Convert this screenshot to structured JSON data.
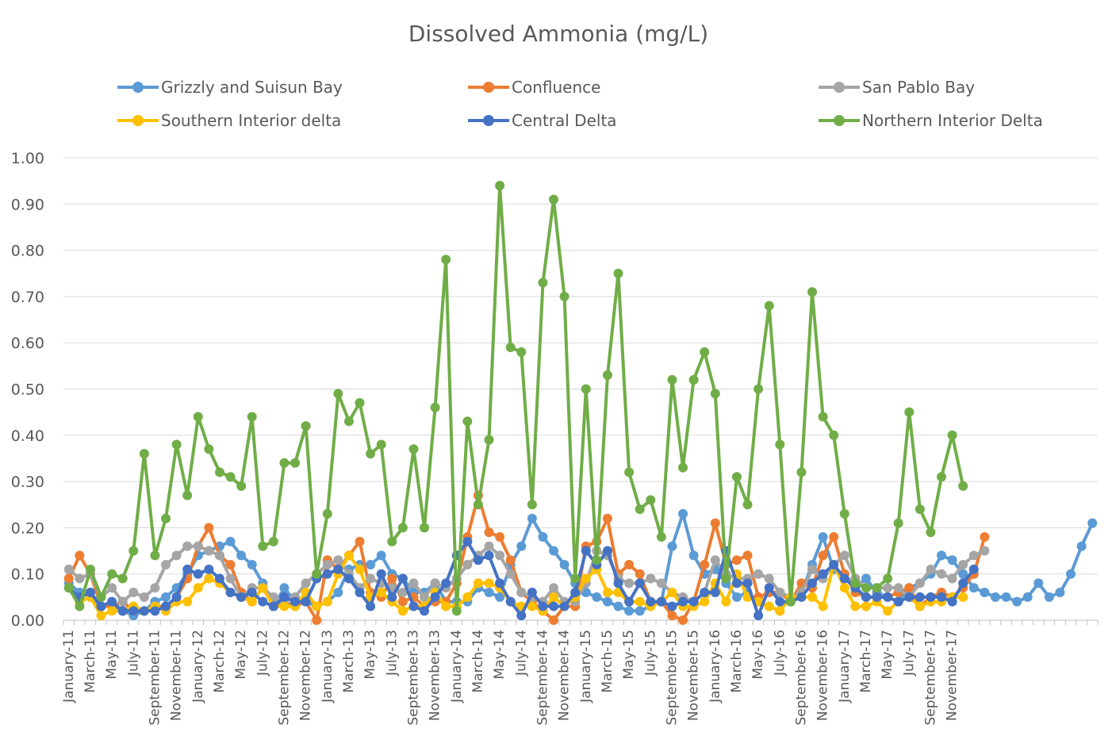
{
  "chart_data": {
    "type": "line",
    "title": "Dissolved Ammonia (mg/L)",
    "xlabel": "",
    "ylabel": "",
    "ylim": [
      0,
      1
    ],
    "yticks": [
      "0.00",
      "0.10",
      "0.20",
      "0.30",
      "0.40",
      "0.50",
      "0.60",
      "0.70",
      "0.80",
      "0.90",
      "1.00"
    ],
    "grid": "horizontal",
    "legend_position": "top",
    "x_tick_labels": [
      "January-11",
      "March-11",
      "May-11",
      "July-11",
      "September-11",
      "November-11",
      "January-12",
      "March-12",
      "May-12",
      "July-12",
      "September-12",
      "November-12",
      "January-13",
      "March-13",
      "May-13",
      "July-13",
      "September-13",
      "November-13",
      "January-14",
      "March-14",
      "May-14",
      "July-14",
      "September-14",
      "November-14",
      "January-15",
      "March-15",
      "May-15",
      "July-15",
      "September-15",
      "November-15",
      "January-16",
      "March-16",
      "May-16",
      "July-16",
      "September-16",
      "November-16",
      "January-17",
      "March-17",
      "May-17",
      "July-17",
      "September-17",
      "November-17"
    ],
    "series": [
      {
        "name": "Grizzly and Suisun Bay",
        "color": "#5B9BD5",
        "values": [
          0.08,
          0.06,
          0.05,
          0.03,
          0.03,
          0.02,
          0.01,
          0.02,
          0.04,
          0.05,
          0.07,
          0.1,
          0.14,
          0.15,
          0.16,
          0.17,
          0.14,
          0.12,
          0.08,
          0.03,
          0.07,
          0.04,
          0.04,
          0.03,
          0.04,
          0.06,
          0.11,
          0.12,
          0.12,
          0.14,
          0.1,
          0.09,
          0.06,
          0.06,
          0.08,
          0.04,
          0.04,
          0.04,
          0.07,
          0.06,
          0.05,
          0.12,
          0.16,
          0.22,
          0.18,
          0.15,
          0.12,
          0.08,
          0.06,
          0.05,
          0.04,
          0.03,
          0.02,
          0.02,
          0.03,
          0.04,
          0.16,
          0.23,
          0.14,
          0.1,
          0.11,
          0.08,
          0.05,
          0.06,
          0.04,
          0.03,
          0.02,
          0.05,
          0.06,
          0.12,
          0.18,
          0.11,
          0.1,
          0.07,
          0.09,
          0.06,
          0.05,
          0.04,
          0.07,
          0.08,
          0.1,
          0.14,
          0.13,
          0.1,
          0.07,
          0.06,
          0.05,
          0.05,
          0.04,
          0.05,
          0.08,
          0.05,
          0.06,
          0.1,
          0.16,
          0.21
        ]
      },
      {
        "name": "Confluence",
        "color": "#ED7D31",
        "values": [
          0.09,
          0.14,
          0.1,
          0.03,
          0.03,
          0.04,
          0.02,
          0.02,
          0.03,
          0.03,
          0.05,
          0.09,
          0.16,
          0.2,
          0.14,
          0.12,
          0.06,
          0.04,
          0.07,
          0.03,
          0.04,
          0.03,
          0.04,
          0.0,
          0.13,
          0.11,
          0.14,
          0.17,
          0.06,
          0.05,
          0.09,
          0.04,
          0.05,
          0.03,
          0.04,
          0.04,
          0.08,
          0.18,
          0.27,
          0.19,
          0.18,
          0.13,
          0.06,
          0.04,
          0.02,
          0.0,
          0.03,
          0.03,
          0.16,
          0.17,
          0.22,
          0.1,
          0.12,
          0.1,
          0.04,
          0.04,
          0.01,
          0.0,
          0.04,
          0.12,
          0.21,
          0.12,
          0.13,
          0.14,
          0.05,
          0.06,
          0.06,
          0.04,
          0.08,
          0.07,
          0.14,
          0.18,
          0.1,
          0.06,
          0.05,
          0.05,
          0.05,
          0.06,
          0.07,
          0.03,
          0.05,
          0.06,
          0.05,
          0.07,
          0.1,
          0.18
        ]
      },
      {
        "name": "San Pablo Bay",
        "color": "#A5A5A5",
        "values": [
          0.11,
          0.09,
          0.1,
          0.05,
          0.07,
          0.04,
          0.06,
          0.05,
          0.07,
          0.12,
          0.14,
          0.16,
          0.16,
          0.15,
          0.14,
          0.09,
          0.05,
          0.07,
          0.07,
          0.05,
          0.04,
          0.05,
          0.08,
          0.1,
          0.12,
          0.13,
          0.1,
          0.07,
          0.09,
          0.08,
          0.07,
          0.06,
          0.08,
          0.05,
          0.08,
          0.07,
          0.09,
          0.12,
          0.14,
          0.16,
          0.14,
          0.1,
          0.06,
          0.05,
          0.04,
          0.07,
          0.04,
          0.04,
          0.08,
          0.15,
          0.14,
          0.09,
          0.08,
          0.08,
          0.09,
          0.08,
          0.06,
          0.05,
          0.04,
          0.06,
          0.13,
          0.1,
          0.09,
          0.09,
          0.1,
          0.09,
          0.06,
          0.05,
          0.06,
          0.11,
          0.09,
          0.12,
          0.14,
          0.09,
          0.07,
          0.07,
          0.07,
          0.07,
          0.05,
          0.08,
          0.11,
          0.1,
          0.09,
          0.12,
          0.14,
          0.15
        ]
      },
      {
        "name": "Southern Interior delta",
        "color": "#FFC000",
        "values": [
          0.07,
          0.04,
          0.05,
          0.01,
          0.02,
          0.02,
          0.03,
          0.02,
          0.03,
          0.02,
          0.04,
          0.04,
          0.07,
          0.09,
          0.08,
          0.06,
          0.05,
          0.04,
          0.07,
          0.03,
          0.03,
          0.03,
          0.06,
          0.03,
          0.04,
          0.1,
          0.14,
          0.11,
          0.05,
          0.06,
          0.04,
          0.02,
          0.03,
          0.03,
          0.06,
          0.03,
          0.03,
          0.05,
          0.08,
          0.08,
          0.07,
          0.04,
          0.03,
          0.03,
          0.02,
          0.05,
          0.03,
          0.05,
          0.09,
          0.11,
          0.06,
          0.06,
          0.04,
          0.04,
          0.03,
          0.04,
          0.06,
          0.03,
          0.03,
          0.04,
          0.08,
          0.04,
          0.1,
          0.05,
          0.04,
          0.03,
          0.02,
          0.05,
          0.05,
          0.05,
          0.03,
          0.12,
          0.07,
          0.03,
          0.03,
          0.04,
          0.02,
          0.04,
          0.05,
          0.03,
          0.04,
          0.04,
          0.05,
          0.05
        ]
      },
      {
        "name": "Central Delta",
        "color": "#4472C4",
        "values": [
          0.07,
          0.05,
          0.06,
          0.03,
          0.04,
          0.02,
          0.02,
          0.02,
          0.02,
          0.03,
          0.05,
          0.11,
          0.1,
          0.11,
          0.09,
          0.06,
          0.05,
          0.06,
          0.04,
          0.03,
          0.05,
          0.04,
          0.04,
          0.09,
          0.1,
          0.11,
          0.09,
          0.06,
          0.03,
          0.1,
          0.05,
          0.09,
          0.03,
          0.02,
          0.05,
          0.08,
          0.14,
          0.17,
          0.13,
          0.14,
          0.08,
          0.04,
          0.01,
          0.06,
          0.03,
          0.03,
          0.03,
          0.06,
          0.15,
          0.12,
          0.15,
          0.08,
          0.04,
          0.08,
          0.04,
          0.04,
          0.03,
          0.04,
          0.04,
          0.06,
          0.06,
          0.15,
          0.08,
          0.08,
          0.01,
          0.07,
          0.04,
          0.04,
          0.05,
          0.08,
          0.1,
          0.12,
          0.09,
          0.07,
          0.05,
          0.05,
          0.05,
          0.04,
          0.05,
          0.05,
          0.05,
          0.05,
          0.04,
          0.08,
          0.11
        ]
      },
      {
        "name": "Northern Interior Delta",
        "color": "#70AD47",
        "values": [
          0.07,
          0.03,
          0.11,
          0.05,
          0.1,
          0.09,
          0.15,
          0.36,
          0.14,
          0.22,
          0.38,
          0.27,
          0.44,
          0.37,
          0.32,
          0.31,
          0.29,
          0.44,
          0.16,
          0.17,
          0.34,
          0.34,
          0.42,
          0.1,
          0.23,
          0.49,
          0.43,
          0.47,
          0.36,
          0.38,
          0.17,
          0.2,
          0.37,
          0.2,
          0.46,
          0.78,
          0.02,
          0.43,
          0.25,
          0.39,
          0.94,
          0.59,
          0.58,
          0.25,
          0.73,
          0.91,
          0.7,
          0.09,
          0.5,
          0.13,
          0.53,
          0.75,
          0.32,
          0.24,
          0.26,
          0.18,
          0.52,
          0.33,
          0.52,
          0.58,
          0.49,
          0.09,
          0.31,
          0.25,
          0.5,
          0.68,
          0.38,
          0.04,
          0.32,
          0.71,
          0.44,
          0.4,
          0.23,
          0.08,
          0.07,
          0.07,
          0.09,
          0.21,
          0.45,
          0.24,
          0.19,
          0.31,
          0.4,
          0.29
        ]
      }
    ]
  }
}
